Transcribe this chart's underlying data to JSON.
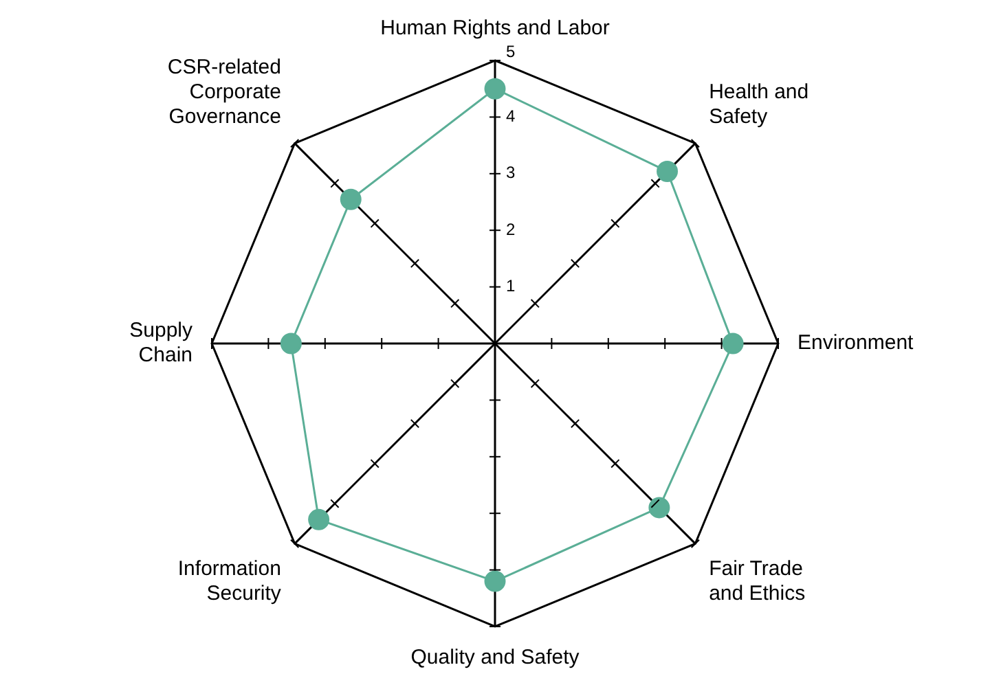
{
  "chart_data": {
    "type": "radar",
    "categories": [
      "Human Rights and Labor",
      "Health and Safety",
      "Environment",
      "Fair Trade and Ethics",
      "Quality and Safety",
      "Information Security",
      "Supply Chain",
      "CSR-related Corporate Governance"
    ],
    "series": [
      {
        "color": "#5aae96",
        "values": [
          4.5,
          4.3,
          4.2,
          4.1,
          4.2,
          4.4,
          3.6,
          3.6
        ]
      }
    ],
    "ylim": [
      0,
      5
    ],
    "yticks": [
      1,
      2,
      3,
      4,
      5
    ],
    "marker": "circle",
    "legend": false,
    "grid": false
  }
}
